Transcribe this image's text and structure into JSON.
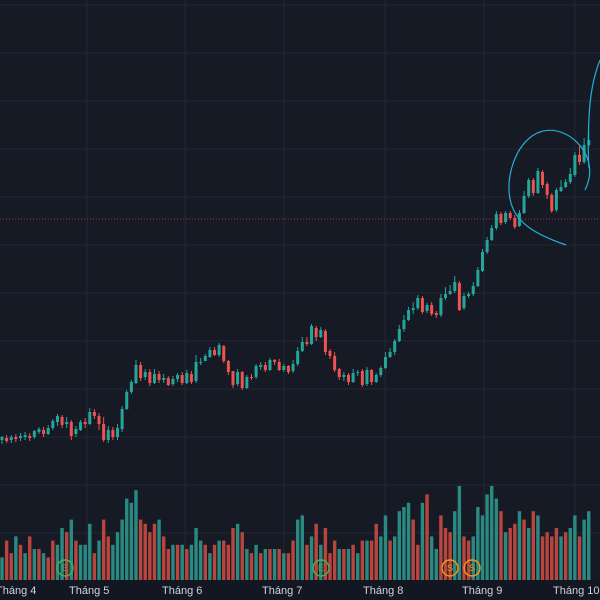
{
  "colors": {
    "background": "#161a25",
    "grid": "#242836",
    "up": "#26a69a",
    "down": "#ef5350",
    "volume_up": "#2a8a82",
    "volume_down": "#b8463f",
    "price_line": "#b2334a",
    "drawing": "#23b2d4",
    "marker_e": "#4caf50",
    "marker_s": "#f7931a",
    "axis_text": "#d1d4dc",
    "axis_bg": "#131722"
  },
  "x_axis": {
    "labels": [
      "Tháng 4",
      "Tháng 5",
      "Tháng 6",
      "Tháng 7",
      "Tháng 8",
      "Tháng 9",
      "Tháng 10"
    ]
  },
  "events": {
    "markers": [
      {
        "text": "E",
        "type": "earnings"
      },
      {
        "text": "E",
        "type": "earnings"
      },
      {
        "text": "S",
        "type": "split"
      },
      {
        "text": "S",
        "type": "split"
      }
    ]
  },
  "drawings": [
    {
      "type": "freehand-circle",
      "name": "circle-annotation"
    },
    {
      "type": "freehand-line",
      "name": "edge-curve"
    }
  ],
  "chart_data": {
    "type": "candlestick",
    "price_scale_visible": false,
    "grid": true,
    "candles": [
      [
        440,
        437,
        444,
        436,
        3
      ],
      [
        438,
        441,
        443,
        435,
        -7
      ],
      [
        440,
        437,
        443,
        435,
        -4
      ],
      [
        437,
        439,
        442,
        434,
        8
      ],
      [
        438,
        436,
        441,
        433,
        -6
      ],
      [
        437,
        435,
        440,
        432,
        4
      ],
      [
        436,
        438,
        441,
        433,
        -8
      ],
      [
        437,
        431,
        439,
        430,
        5
      ],
      [
        432,
        429,
        434,
        427,
        -5
      ],
      [
        430,
        434,
        437,
        427,
        4
      ],
      [
        434,
        428,
        435,
        425,
        -3
      ],
      [
        428,
        421,
        430,
        419,
        -7
      ],
      [
        422,
        416,
        426,
        414,
        6
      ],
      [
        417,
        425,
        428,
        415,
        10
      ],
      [
        424,
        422,
        428,
        417,
        -9
      ],
      [
        422,
        436,
        440,
        420,
        12
      ],
      [
        434,
        429,
        437,
        426,
        -7
      ],
      [
        430,
        422,
        431,
        420,
        6
      ],
      [
        422,
        424,
        428,
        418,
        6
      ],
      [
        424,
        412,
        425,
        408,
        11
      ],
      [
        412,
        416,
        419,
        409,
        -4
      ],
      [
        416,
        424,
        430,
        413,
        7
      ],
      [
        424,
        440,
        442,
        417,
        -12
      ],
      [
        440,
        430,
        443,
        426,
        -8
      ],
      [
        430,
        437,
        440,
        427,
        6
      ],
      [
        437,
        428,
        440,
        424,
        9
      ],
      [
        429,
        409,
        432,
        406,
        12
      ],
      [
        409,
        392,
        410,
        390,
        17
      ],
      [
        392,
        382,
        394,
        380,
        16
      ],
      [
        383,
        365,
        384,
        360,
        19
      ],
      [
        365,
        378,
        381,
        362,
        -12
      ],
      [
        377,
        372,
        380,
        369,
        -11
      ],
      [
        372,
        383,
        386,
        369,
        -9
      ],
      [
        383,
        374,
        384,
        369,
        -11
      ],
      [
        374,
        380,
        383,
        371,
        12
      ],
      [
        380,
        378,
        383,
        374,
        -8
      ],
      [
        378,
        385,
        386,
        376,
        -5
      ],
      [
        384,
        379,
        386,
        376,
        6
      ],
      [
        379,
        375,
        382,
        373,
        -6
      ],
      [
        375,
        383,
        385,
        372,
        6
      ],
      [
        383,
        373,
        384,
        370,
        -5
      ],
      [
        374,
        382,
        384,
        371,
        6
      ],
      [
        381,
        362,
        383,
        355,
        10
      ],
      [
        363,
        362,
        365,
        358,
        7
      ],
      [
        361,
        356,
        361,
        354,
        -6
      ],
      [
        357,
        350,
        358,
        347,
        4
      ],
      [
        350,
        355,
        356,
        347,
        -6
      ],
      [
        355,
        345,
        357,
        343,
        7
      ],
      [
        346,
        361,
        363,
        345,
        -7
      ],
      [
        361,
        372,
        375,
        360,
        -6
      ],
      [
        371,
        385,
        388,
        371,
        -10
      ],
      [
        384,
        372,
        386,
        369,
        11
      ],
      [
        372,
        388,
        390,
        371,
        -9
      ],
      [
        388,
        377,
        389,
        375,
        5
      ],
      [
        377,
        377,
        380,
        374,
        -4
      ],
      [
        377,
        366,
        379,
        364,
        6
      ],
      [
        367,
        365,
        370,
        362,
        -4
      ],
      [
        365,
        370,
        372,
        362,
        5
      ],
      [
        370,
        360,
        371,
        358,
        -5
      ],
      [
        360,
        362,
        365,
        359,
        5
      ],
      [
        362,
        370,
        371,
        359,
        -5
      ],
      [
        370,
        366,
        372,
        364,
        4
      ],
      [
        366,
        372,
        374,
        365,
        -4
      ],
      [
        371,
        364,
        373,
        360,
        -7
      ],
      [
        364,
        351,
        366,
        347,
        12
      ],
      [
        351,
        342,
        352,
        337,
        13
      ],
      [
        342,
        344,
        346,
        337,
        -6
      ],
      [
        344,
        326,
        345,
        324,
        8
      ],
      [
        328,
        337,
        341,
        326,
        -11
      ],
      [
        337,
        330,
        338,
        327,
        6
      ],
      [
        331,
        352,
        355,
        329,
        -10
      ],
      [
        351,
        356,
        359,
        349,
        -4
      ],
      [
        356,
        370,
        372,
        352,
        -7
      ],
      [
        369,
        377,
        380,
        368,
        5
      ],
      [
        377,
        375,
        381,
        372,
        -5
      ],
      [
        375,
        382,
        385,
        373,
        5
      ],
      [
        382,
        373,
        383,
        369,
        -6
      ],
      [
        373,
        372,
        376,
        370,
        4
      ],
      [
        371,
        385,
        387,
        369,
        -7
      ],
      [
        384,
        370,
        386,
        367,
        7
      ],
      [
        370,
        382,
        385,
        369,
        -7
      ],
      [
        382,
        375,
        383,
        373,
        -11
      ],
      [
        375,
        368,
        377,
        366,
        8
      ],
      [
        368,
        357,
        369,
        352,
        13
      ],
      [
        357,
        352,
        358,
        348,
        -7
      ],
      [
        352,
        341,
        355,
        339,
        8
      ],
      [
        341,
        329,
        342,
        325,
        14
      ],
      [
        329,
        320,
        332,
        315,
        15
      ],
      [
        320,
        310,
        321,
        307,
        16
      ],
      [
        310,
        308,
        314,
        302,
        -12
      ],
      [
        308,
        298,
        310,
        295,
        -6
      ],
      [
        298,
        312,
        314,
        296,
        16
      ],
      [
        311,
        305,
        313,
        303,
        -18
      ],
      [
        305,
        314,
        316,
        302,
        8
      ],
      [
        313,
        315,
        318,
        311,
        5
      ],
      [
        315,
        298,
        317,
        294,
        -13
      ],
      [
        298,
        294,
        300,
        287,
        -10
      ],
      [
        294,
        291,
        295,
        285,
        -9
      ],
      [
        291,
        282,
        293,
        276,
        14
      ],
      [
        283,
        310,
        311,
        281,
        20
      ],
      [
        308,
        296,
        310,
        293,
        -8
      ],
      [
        296,
        294,
        298,
        292,
        -7
      ],
      [
        294,
        286,
        296,
        282,
        8
      ],
      [
        286,
        270,
        287,
        267,
        15
      ],
      [
        271,
        252,
        272,
        249,
        13
      ],
      [
        252,
        240,
        254,
        237,
        18
      ],
      [
        240,
        228,
        241,
        225,
        20
      ],
      [
        228,
        214,
        230,
        211,
        17
      ],
      [
        214,
        223,
        225,
        212,
        -14
      ],
      [
        222,
        213,
        224,
        211,
        9
      ],
      [
        213,
        218,
        220,
        211,
        -10
      ],
      [
        218,
        227,
        229,
        215,
        -11
      ],
      [
        226,
        213,
        227,
        210,
        14
      ],
      [
        213,
        196,
        214,
        191,
        -12
      ],
      [
        196,
        180,
        198,
        178,
        10
      ],
      [
        180,
        193,
        196,
        178,
        -14
      ],
      [
        193,
        171,
        194,
        168,
        13
      ],
      [
        172,
        185,
        188,
        170,
        -8
      ],
      [
        184,
        195,
        199,
        182,
        -9
      ],
      [
        195,
        211,
        213,
        193,
        -8
      ],
      [
        210,
        190,
        212,
        188,
        -10
      ],
      [
        191,
        187,
        192,
        180,
        8
      ],
      [
        187,
        182,
        188,
        179,
        -9
      ],
      [
        182,
        174,
        184,
        168,
        10
      ],
      [
        175,
        155,
        177,
        152,
        13
      ],
      [
        155,
        162,
        165,
        146,
        -8
      ],
      [
        162,
        145,
        164,
        138,
        12
      ],
      [
        145,
        140,
        147,
        132,
        14
      ]
    ]
  }
}
